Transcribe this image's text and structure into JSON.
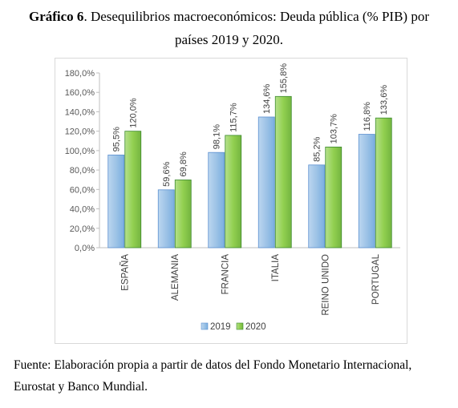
{
  "title": {
    "label": "Gráfico 6",
    "text": ". Desequilibrios macroeconómicos: Deuda pública (% PIB) por",
    "line2": "países 2019 y 2020."
  },
  "source": {
    "line1": "Fuente: Elaboración propia a partir de datos del Fondo Monetario Internacional,",
    "line2": "Eurostat y Banco Mundial."
  },
  "chart_data": {
    "type": "bar",
    "categories": [
      "ESPAÑA",
      "ALEMANIA",
      "FRANCIA",
      "ITALIA",
      "REINO UNIDO",
      "PORTUGAL"
    ],
    "series": [
      {
        "name": "2019",
        "values": [
          95.5,
          59.6,
          98.1,
          134.6,
          85.2,
          116.8
        ],
        "labels": [
          "95,5%",
          "59,6%",
          "98,1%",
          "134,6%",
          "85,2%",
          "116,8%"
        ],
        "color": "#9dc3e6"
      },
      {
        "name": "2020",
        "values": [
          120.0,
          69.8,
          115.7,
          155.8,
          103.7,
          133.6
        ],
        "labels": [
          "120,0%",
          "69,8%",
          "115,7%",
          "155,8%",
          "103,7%",
          "133,6%"
        ],
        "color": "#92d050"
      }
    ],
    "ylim": [
      0,
      180
    ],
    "yticks": [
      0,
      20,
      40,
      60,
      80,
      100,
      120,
      140,
      160,
      180
    ],
    "ytick_labels": [
      "0,0%",
      "20,0%",
      "40,0%",
      "60,0%",
      "80,0%",
      "100,0%",
      "120,0%",
      "140,0%",
      "160,0%",
      "180,0%"
    ],
    "grid": false,
    "legend_position": "bottom"
  }
}
